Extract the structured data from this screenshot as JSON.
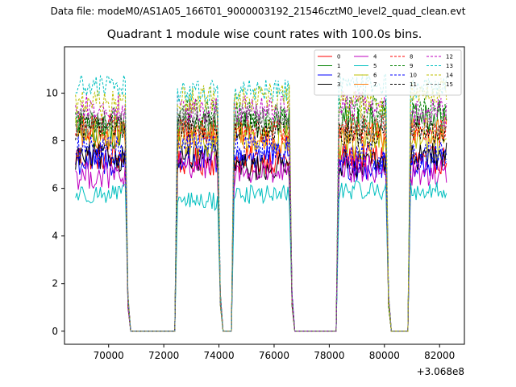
{
  "figure": {
    "suptitle": "Data file: modeM0/AS1A05_166T01_9000003192_21546cztM0_level2_quad_clean.evt"
  },
  "chart_data": {
    "type": "line",
    "title": "Quadrant 1 module wise count rates with 100.0s bins.",
    "xlabel": "",
    "ylabel": "",
    "x_offset_label": "+3.068e8",
    "xlim": [
      68400,
      82900
    ],
    "ylim": [
      -0.55,
      11.95
    ],
    "xticks": [
      70000,
      72000,
      74000,
      76000,
      78000,
      80000,
      82000
    ],
    "xtick_labels": [
      "70000",
      "72000",
      "74000",
      "76000",
      "78000",
      "80000",
      "82000"
    ],
    "yticks": [
      0,
      2,
      4,
      6,
      8,
      10
    ],
    "ytick_labels": [
      "0",
      "2",
      "4",
      "6",
      "8",
      "10"
    ],
    "grid": false,
    "legend_placement": "top-right",
    "segments": [
      {
        "start": 68800,
        "end": 70600,
        "step": 50
      },
      {
        "start": 72500,
        "end": 73950,
        "step": 50
      },
      {
        "start": 74550,
        "end": 76550,
        "step": 50
      },
      {
        "start": 78350,
        "end": 80050,
        "step": 50
      },
      {
        "start": 80950,
        "end": 82250,
        "step": 50
      }
    ],
    "gaps": [
      {
        "x": [
          70600,
          70700,
          70800,
          72400,
          72500
        ]
      },
      {
        "x": [
          73950,
          74050,
          74150,
          74350,
          74450,
          74550
        ]
      },
      {
        "x": [
          76550,
          76650,
          76750,
          78250,
          78350
        ]
      },
      {
        "x": [
          80050,
          80150,
          80250,
          80750,
          80850,
          80950
        ]
      }
    ],
    "series": [
      {
        "name": "0",
        "color": "#ff0000",
        "dash": "solid",
        "level": 7.2,
        "variance": 0.6
      },
      {
        "name": "1",
        "color": "#008000",
        "dash": "solid",
        "level": 8.6,
        "variance": 0.7
      },
      {
        "name": "2",
        "color": "#0000ff",
        "dash": "solid",
        "level": 7.1,
        "variance": 0.6
      },
      {
        "name": "3",
        "color": "#000000",
        "dash": "solid",
        "level": 7.1,
        "variance": 0.6
      },
      {
        "name": "4",
        "color": "#bf00bf",
        "dash": "solid",
        "level": 6.7,
        "variance": 0.6
      },
      {
        "name": "5",
        "color": "#00bfbf",
        "dash": "solid",
        "level": 5.7,
        "variance": 0.4
      },
      {
        "name": "6",
        "color": "#bfbf00",
        "dash": "solid",
        "level": 8.1,
        "variance": 0.7
      },
      {
        "name": "7",
        "color": "#ff7f0e",
        "dash": "solid",
        "level": 8.3,
        "variance": 0.6
      },
      {
        "name": "8",
        "color": "#ff0000",
        "dash": "dashed",
        "level": 8.5,
        "variance": 0.6
      },
      {
        "name": "9",
        "color": "#008000",
        "dash": "dashed",
        "level": 9.1,
        "variance": 0.6
      },
      {
        "name": "10",
        "color": "#0000ff",
        "dash": "dashed",
        "level": 7.6,
        "variance": 0.6
      },
      {
        "name": "11",
        "color": "#000000",
        "dash": "dashed",
        "level": 8.4,
        "variance": 0.6
      },
      {
        "name": "12",
        "color": "#bf00bf",
        "dash": "dashed",
        "level": 9.5,
        "variance": 0.6
      },
      {
        "name": "13",
        "color": "#00bfbf",
        "dash": "dashed",
        "level": 10.2,
        "variance": 0.5
      },
      {
        "name": "14",
        "color": "#bfbf00",
        "dash": "dashed",
        "level": 9.8,
        "variance": 0.6
      },
      {
        "name": "15",
        "color": "#7f7f7f",
        "dash": "dashed",
        "level": 8.8,
        "variance": 0.6
      }
    ],
    "legend_entries": [
      "0",
      "1",
      "2",
      "3",
      "4",
      "5",
      "6",
      "7",
      "8",
      "9",
      "10",
      "11",
      "12",
      "13",
      "14",
      "15"
    ]
  }
}
